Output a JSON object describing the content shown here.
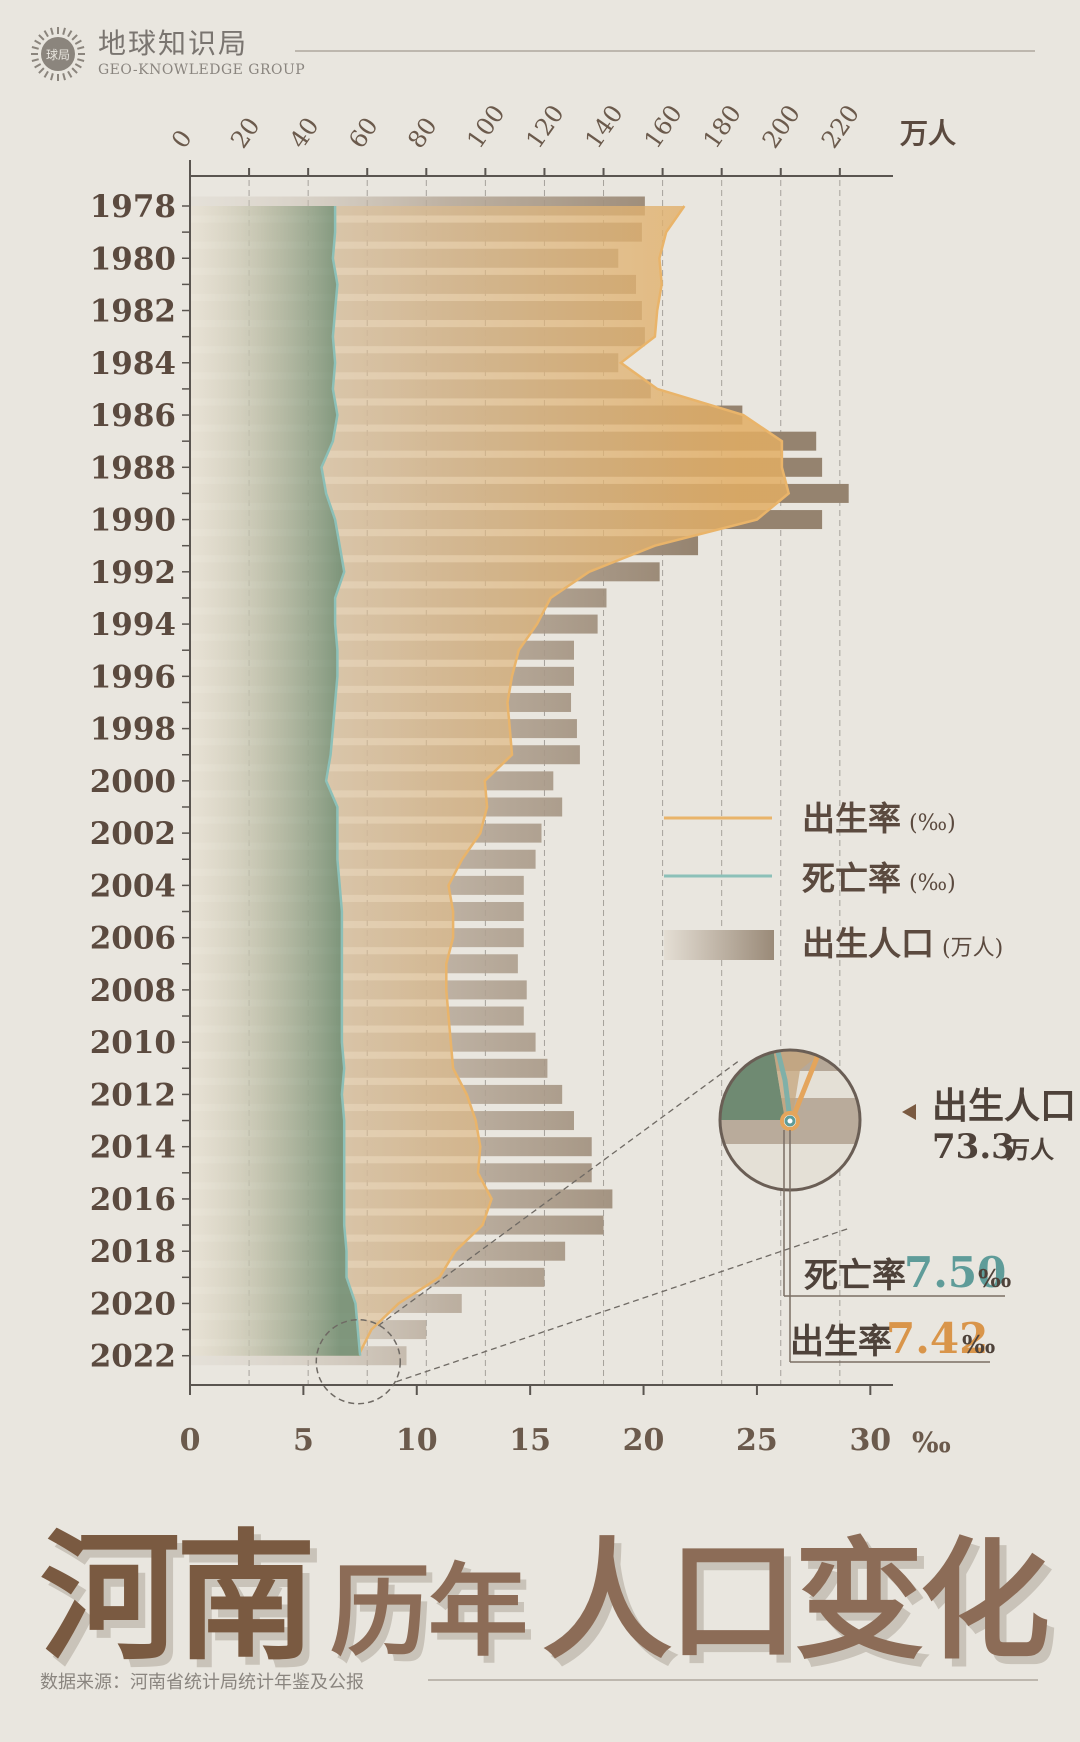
{
  "header": {
    "brand_cn": "地球知识局",
    "brand_en": "GEO-KNOWLEDGE GROUP",
    "logo_text": "球局"
  },
  "title": {
    "part1": "河南",
    "part2": "历年",
    "part3": "人口变化"
  },
  "source": "数据来源：河南省统计局统计年鉴及公报",
  "colors": {
    "background": "#e9e6df",
    "birth_rate": "#e9b46a",
    "death_rate": "#7fb0a8",
    "bars": "#9a8a78",
    "title": "#7a5a41",
    "callout_death": "#5f9c99",
    "callout_birth": "#d9954a"
  },
  "chart_data": {
    "type": "bar+line",
    "categories_label_every": 2,
    "years": [
      1978,
      1979,
      1980,
      1981,
      1982,
      1983,
      1984,
      1985,
      1986,
      1987,
      1988,
      1989,
      1990,
      1991,
      1992,
      1993,
      1994,
      1995,
      1996,
      1997,
      1998,
      1999,
      2000,
      2001,
      2002,
      2003,
      2004,
      2005,
      2006,
      2007,
      2008,
      2009,
      2010,
      2011,
      2012,
      2013,
      2014,
      2015,
      2016,
      2017,
      2018,
      2019,
      2020,
      2021,
      2022
    ],
    "top_axis": {
      "unit": "万人",
      "ticks": [
        0,
        20,
        40,
        60,
        80,
        100,
        120,
        140,
        160,
        180,
        200,
        220
      ],
      "range": [
        0,
        238
      ]
    },
    "bottom_axis": {
      "unit": "‰",
      "ticks": [
        0,
        5,
        10,
        15,
        20,
        25,
        30
      ],
      "range": [
        0,
        31
      ]
    },
    "series": [
      {
        "name": "出生人口",
        "unit": "万人",
        "type": "bar",
        "values": [
          154,
          153,
          145,
          151,
          153,
          154,
          145,
          156,
          187,
          212,
          214,
          223,
          214,
          172,
          159,
          141,
          138,
          130,
          130,
          129,
          131,
          132,
          123,
          126,
          119,
          117,
          113,
          113,
          113,
          111,
          114,
          113,
          117,
          121,
          126,
          130,
          136,
          136,
          143,
          140,
          127,
          120,
          92,
          80,
          73.3
        ]
      },
      {
        "name": "出生率",
        "unit": "‰",
        "type": "line",
        "values": [
          21.8,
          21.0,
          20.7,
          20.8,
          20.6,
          20.5,
          19.0,
          20.6,
          24.4,
          26.1,
          26.1,
          26.4,
          25.0,
          20.5,
          17.6,
          15.9,
          15.3,
          14.5,
          14.2,
          14.0,
          14.1,
          14.2,
          13.0,
          13.1,
          12.8,
          12.0,
          11.4,
          11.6,
          11.6,
          11.3,
          11.3,
          11.4,
          11.5,
          11.6,
          12.2,
          12.6,
          12.8,
          12.7,
          13.3,
          12.9,
          11.7,
          11.0,
          9.2,
          8.0,
          7.42
        ]
      },
      {
        "name": "死亡率",
        "unit": "‰",
        "type": "line",
        "values": [
          6.4,
          6.4,
          6.3,
          6.5,
          6.4,
          6.3,
          6.4,
          6.3,
          6.5,
          6.3,
          5.8,
          6.0,
          6.4,
          6.6,
          6.8,
          6.4,
          6.4,
          6.5,
          6.5,
          6.4,
          6.3,
          6.2,
          6.0,
          6.5,
          6.5,
          6.5,
          6.6,
          6.7,
          6.7,
          6.7,
          6.7,
          6.7,
          6.7,
          6.8,
          6.7,
          6.8,
          6.8,
          6.8,
          6.8,
          6.8,
          6.9,
          6.9,
          7.3,
          7.4,
          7.5
        ]
      }
    ],
    "legend": [
      {
        "label": "出生率",
        "unit": "(‰)"
      },
      {
        "label": "死亡率",
        "unit": "(‰)"
      },
      {
        "label": "出生人口",
        "unit": "(万人)"
      }
    ],
    "callouts": {
      "births_label": "出生人口",
      "births_value": "73.3",
      "births_unit": "万人",
      "death_label": "死亡率",
      "death_value": "7.50",
      "birth_label": "出生率",
      "birth_value": "7.42",
      "permille": "‰"
    }
  }
}
